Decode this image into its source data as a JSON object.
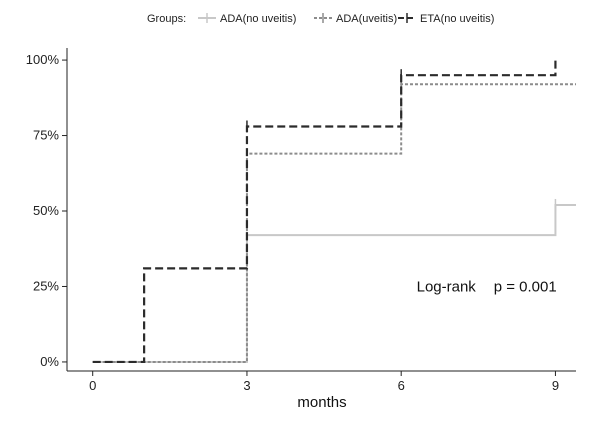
{
  "chart_data": {
    "type": "line",
    "step": true,
    "title": "",
    "xlabel": "months",
    "ylabel": "",
    "xlim": [
      -0.5,
      9.4
    ],
    "ylim": [
      -0.03,
      1.04
    ],
    "xticks": [
      0,
      3,
      6,
      9
    ],
    "xtick_labels": [
      "0",
      "3",
      "6",
      "9"
    ],
    "yticks": [
      0,
      0.25,
      0.5,
      0.75,
      1.0
    ],
    "ytick_labels": [
      "0%",
      "25%",
      "50%",
      "75%",
      "100%"
    ],
    "grid": false,
    "legend": {
      "title": "Groups:",
      "position": "top",
      "entries": [
        "ADA(no uveitis)",
        "ADA(uveitis)",
        "ETA(no uveitis)"
      ]
    },
    "series": [
      {
        "name": "ADA(no uveitis)",
        "color": "#c8c8c8",
        "dash": "solid",
        "x": [
          0,
          3,
          9,
          9.4
        ],
        "y": [
          0,
          0.42,
          0.52,
          0.52
        ],
        "censor_x": [
          9
        ]
      },
      {
        "name": "ADA(uveitis)",
        "color": "#8c8c8c",
        "dash": "dotted",
        "x": [
          0,
          3,
          6,
          9.4
        ],
        "y": [
          0,
          0.69,
          0.92,
          0.92
        ],
        "censor_x": [
          6
        ]
      },
      {
        "name": "ETA(no uveitis)",
        "color": "#2b2b2b",
        "dash": "dashed",
        "x": [
          0,
          1,
          3,
          6,
          9
        ],
        "y": [
          0,
          0.31,
          0.78,
          0.95,
          1.0
        ],
        "censor_x": [
          3,
          6
        ]
      }
    ],
    "annotations": [
      {
        "text": "Log-rank",
        "x": 6.3,
        "y": 0.25
      },
      {
        "text": "p = 0.001",
        "x": 7.8,
        "y": 0.25
      }
    ]
  }
}
